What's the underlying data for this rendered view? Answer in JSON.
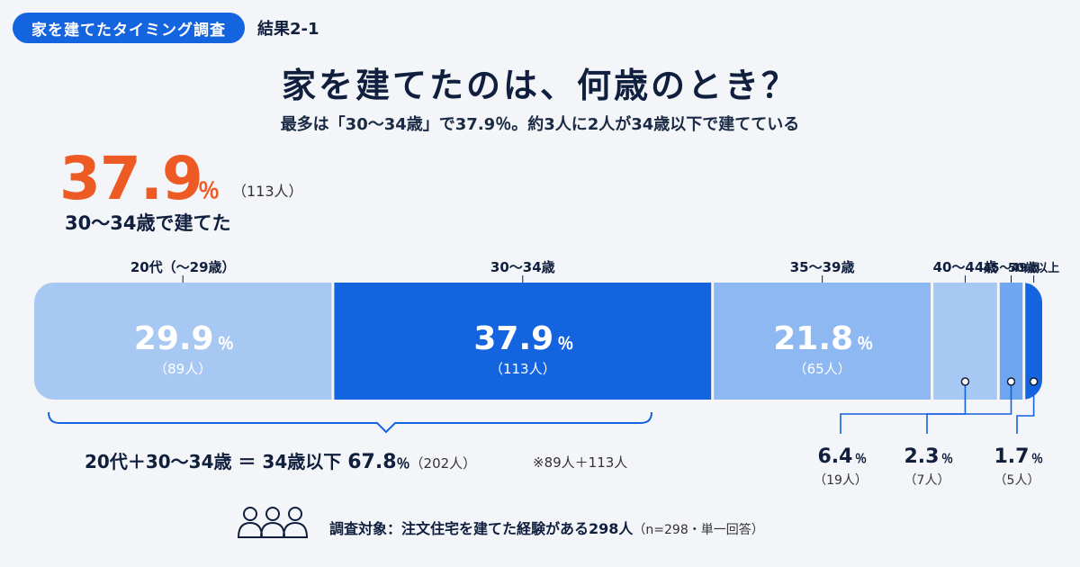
{
  "header": {
    "tag": "家を建てたタイミング調査",
    "result": "結果2-1"
  },
  "title": "家を建てたのは、何歳のとき？",
  "subtitle": "最多は「30～34歳」で37.9％。約3人に2人が34歳以下で建てている",
  "highlight": {
    "value": "37.9",
    "unit": "％",
    "count": "（113人）",
    "label": "30～34歳で建てた"
  },
  "chart_data": {
    "type": "bar",
    "orientation": "horizontal-stacked-100",
    "categories": [
      "20代（～29歳）",
      "30～34歳",
      "35～39歳",
      "40～44歳",
      "45～49歳",
      "50歳以上"
    ],
    "values": [
      29.9,
      37.9,
      21.8,
      6.4,
      2.3,
      1.7
    ],
    "value_labels": [
      "29.9",
      "37.9",
      "21.8",
      "6.4",
      "2.3",
      "1.7"
    ],
    "percent_unit": "％",
    "counts": [
      "（89人）",
      "（113人）",
      "（65人）",
      "（19人）",
      "（7人）",
      "（5人）"
    ],
    "colors": [
      "#a8c8f4",
      "#1463df",
      "#8db8f2",
      "#a8c8f4",
      "#6ea6f0",
      "#1463df"
    ],
    "label_in_bar": [
      true,
      true,
      true,
      false,
      false,
      false
    ]
  },
  "summary": {
    "prefix": "20代＋30～34歳 ＝ 34歳以下",
    "value": "67.8",
    "unit": "％",
    "count": "（202人）",
    "note": "※89人＋113人"
  },
  "survey": {
    "text": "調査対象：注文住宅を建てた経験がある298人",
    "detail": "（n=298・単一回答）"
  }
}
